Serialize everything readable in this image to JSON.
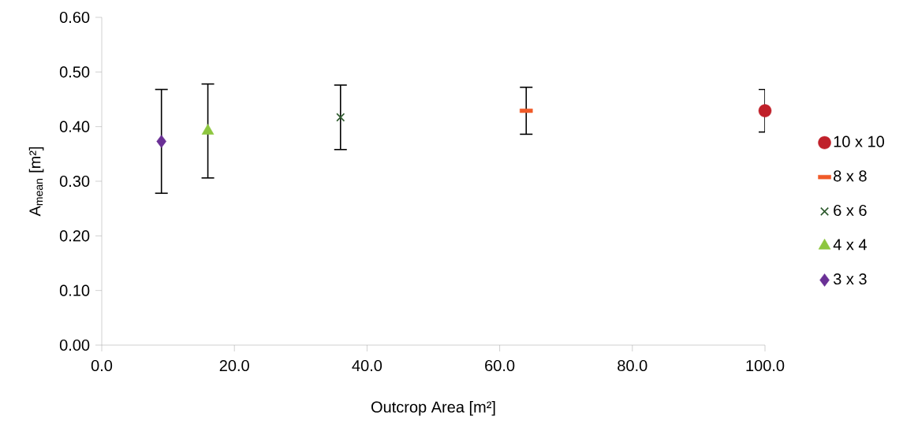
{
  "chart_data": {
    "type": "scatter",
    "xlabel": "Outcrop Area [m²]",
    "ylabel": "A$_{mean}$ [m²]",
    "xlim": [
      0,
      100
    ],
    "ylim": [
      0,
      0.6
    ],
    "xticks": [
      {
        "value": 0,
        "label": "0.0"
      },
      {
        "value": 20,
        "label": "20.0"
      },
      {
        "value": 40,
        "label": "40.0"
      },
      {
        "value": 60,
        "label": "60.0"
      },
      {
        "value": 80,
        "label": "80.0"
      },
      {
        "value": 100,
        "label": "100.0"
      }
    ],
    "yticks": [
      {
        "value": 0,
        "label": "0.00"
      },
      {
        "value": 0.1,
        "label": "0.10"
      },
      {
        "value": 0.2,
        "label": "0.20"
      },
      {
        "value": 0.3,
        "label": "0.30"
      },
      {
        "value": 0.4,
        "label": "0.40"
      },
      {
        "value": 0.5,
        "label": "0.50"
      },
      {
        "value": 0.6,
        "label": "0.60"
      }
    ],
    "grid": false,
    "legend": "right",
    "series": [
      {
        "name": "10 x 10",
        "color": "#c0202a",
        "marker": "circle",
        "x": [
          100
        ],
        "values": [
          0.429
        ],
        "errors": [
          0.039
        ]
      },
      {
        "name": "8 x 8",
        "color": "#f05a28",
        "marker": "square",
        "x": [
          64
        ],
        "values": [
          0.429
        ],
        "errors": [
          0.043
        ]
      },
      {
        "name": "6 x 6",
        "color": "#2d5a2d",
        "marker": "cross",
        "x": [
          36
        ],
        "values": [
          0.417
        ],
        "errors": [
          0.059
        ]
      },
      {
        "name": "4 x 4",
        "color": "#8dc63f",
        "marker": "triangle",
        "x": [
          16
        ],
        "values": [
          0.392
        ],
        "errors": [
          0.086
        ]
      },
      {
        "name": "3 x 3",
        "color": "#6a3096",
        "marker": "diamond",
        "x": [
          9
        ],
        "values": [
          0.373
        ],
        "errors": [
          0.095
        ]
      }
    ]
  }
}
